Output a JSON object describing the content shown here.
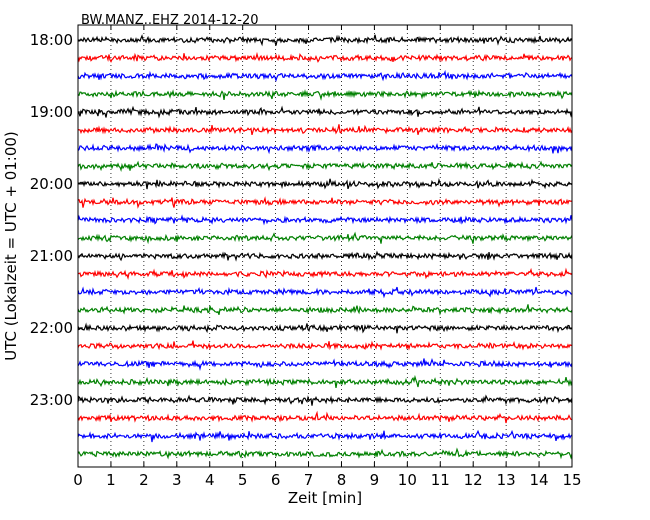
{
  "chart_data": {
    "type": "line",
    "title": "BW.MANZ..EHZ 2014-12-20",
    "xlabel": "Zeit  [min]",
    "ylabel": "UTC (Lokalzeit = UTC + 01:00)",
    "xlim": [
      0,
      15
    ],
    "x_ticks": [
      "0",
      "1",
      "2",
      "3",
      "4",
      "5",
      "6",
      "7",
      "8",
      "9",
      "10",
      "11",
      "12",
      "13",
      "14",
      "15"
    ],
    "y_ticks": [
      "18:00",
      "19:00",
      "20:00",
      "21:00",
      "22:00",
      "23:00"
    ],
    "grid": "vertical-dotted",
    "trace_colors": [
      "#000000",
      "#ff0000",
      "#0000ff",
      "#008000"
    ],
    "trace_start_times": [
      "18:00",
      "18:15",
      "18:30",
      "18:45",
      "19:00",
      "19:15",
      "19:30",
      "19:45",
      "20:00",
      "20:15",
      "20:30",
      "20:45",
      "21:00",
      "21:15",
      "21:30",
      "21:45",
      "22:00",
      "22:15",
      "22:30",
      "22:45",
      "23:00",
      "23:15",
      "23:30",
      "23:45"
    ]
  }
}
